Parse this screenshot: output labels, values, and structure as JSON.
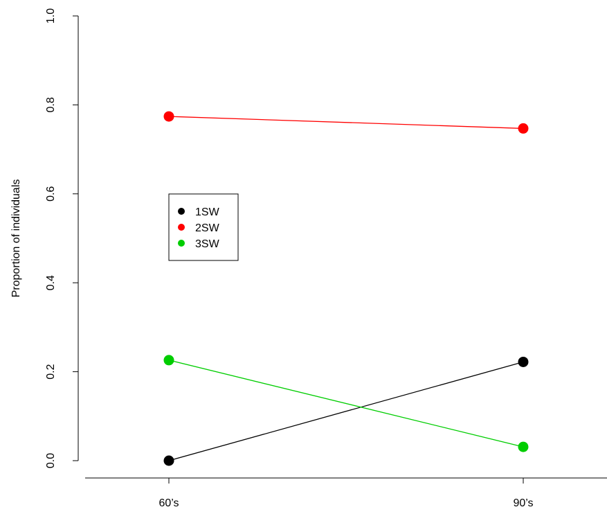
{
  "chart_data": {
    "type": "line",
    "categories": [
      "60’s",
      "90’s"
    ],
    "series": [
      {
        "name": "1SW",
        "color": "#000000",
        "values": [
          0.0,
          0.222
        ]
      },
      {
        "name": "2SW",
        "color": "#ff0000",
        "values": [
          0.774,
          0.747
        ]
      },
      {
        "name": "3SW",
        "color": "#00cd00",
        "values": [
          0.226,
          0.031
        ]
      }
    ],
    "ylabel": "Proportion of individuals",
    "ylim": [
      0,
      1
    ],
    "yticks": [
      "0.0",
      "0.2",
      "0.4",
      "0.6",
      "0.8",
      "1.0"
    ],
    "legend_position": "upper-left",
    "grid": false
  }
}
